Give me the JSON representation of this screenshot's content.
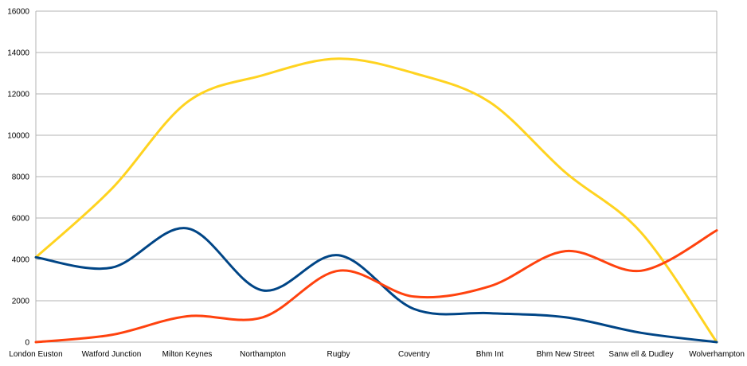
{
  "chart_data": {
    "type": "line",
    "smooth": true,
    "categories": [
      "London Euston",
      "Watford Junction",
      "Milton Keynes",
      "Northampton",
      "Rugby",
      "Coventry",
      "Bhm Int",
      "Bhm New  Street",
      "Sanw ell & Dudley",
      "Wolverhampton"
    ],
    "ylim": [
      0,
      16000
    ],
    "yticks": [
      0,
      2000,
      4000,
      6000,
      8000,
      10000,
      12000,
      14000,
      16000
    ],
    "grid": true,
    "legend": "none",
    "series": [
      {
        "color": "#ffd320",
        "values": [
          4100,
          7400,
          11600,
          12900,
          13700,
          13000,
          11600,
          8200,
          5300,
          0
        ]
      },
      {
        "color": "#004586",
        "values": [
          4100,
          3600,
          5500,
          2500,
          4200,
          1600,
          1400,
          1200,
          450,
          0
        ]
      },
      {
        "color": "#ff420e",
        "values": [
          0,
          350,
          1250,
          1200,
          3450,
          2200,
          2700,
          4400,
          3450,
          5400
        ]
      }
    ]
  }
}
